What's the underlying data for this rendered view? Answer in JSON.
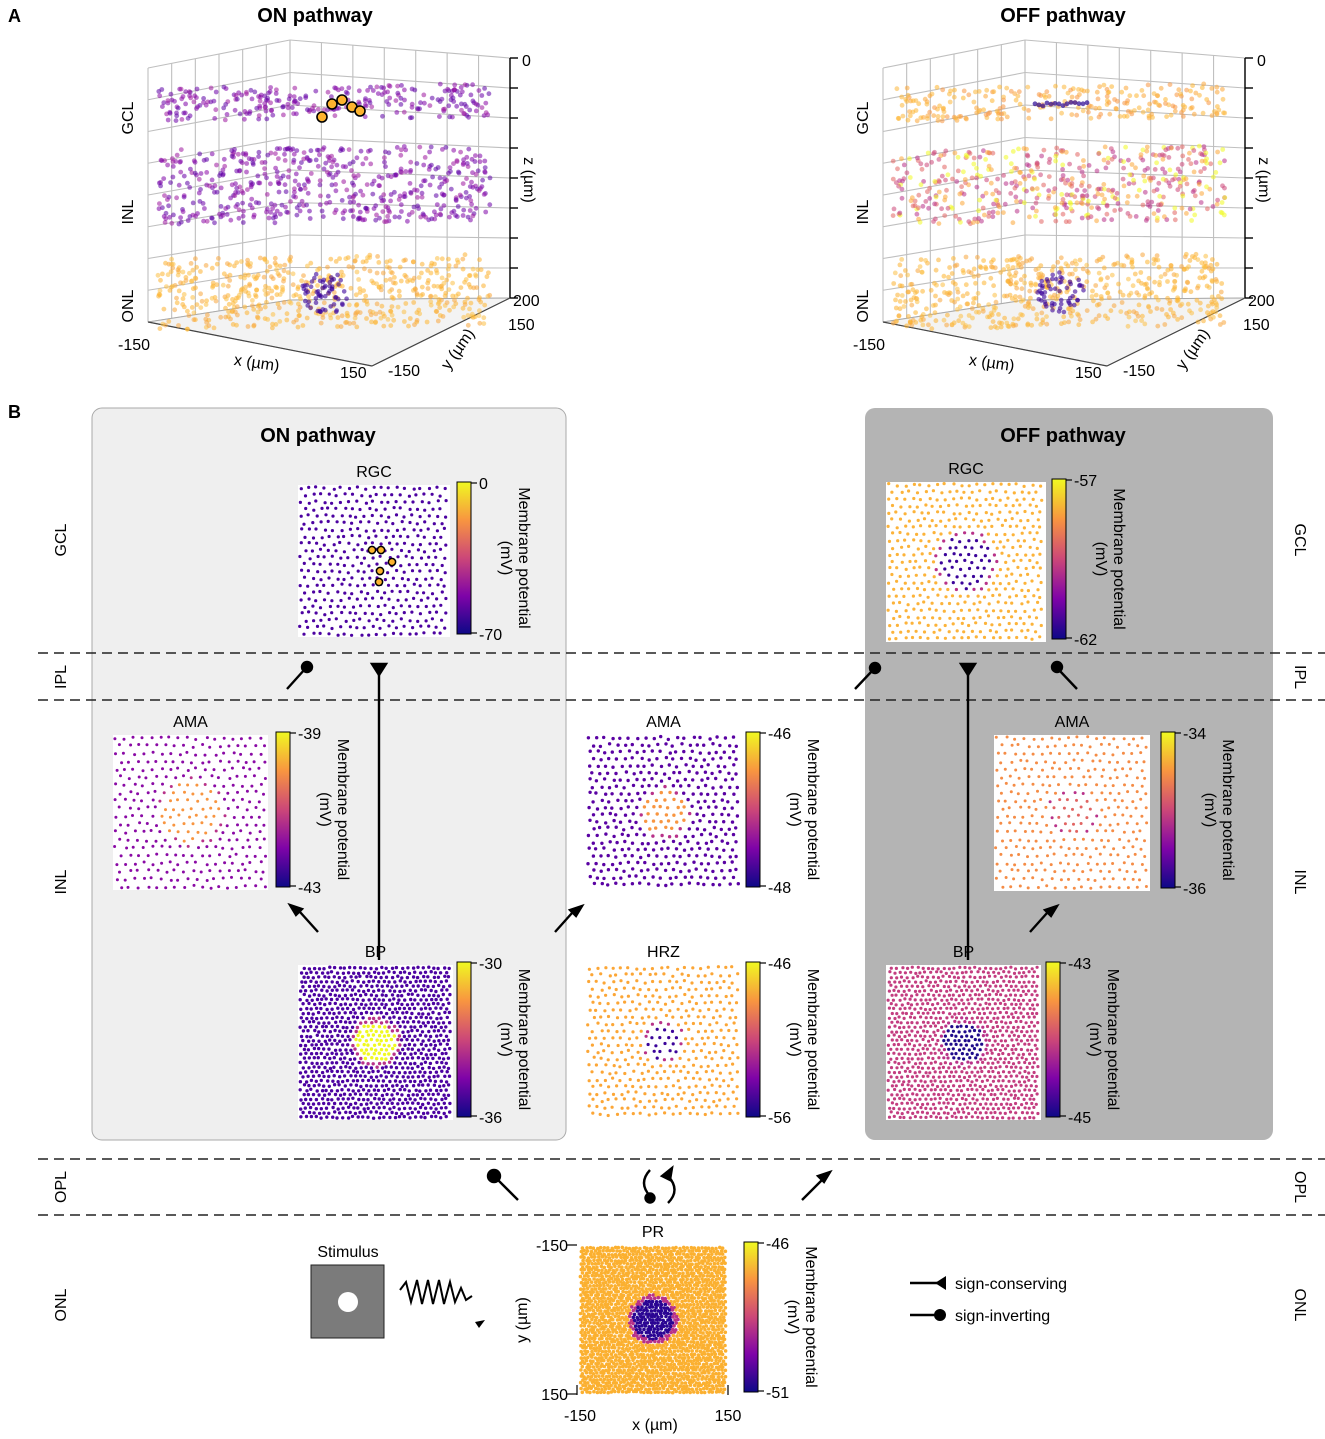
{
  "panel_a": {
    "label": "A",
    "on": {
      "title": "ON pathway",
      "layers": [
        "GCL",
        "INL",
        "ONL"
      ],
      "z_label": "z (µm)",
      "z_top": "0",
      "z_bottom": "200",
      "x_label": "x (µm)",
      "x_min": "-150",
      "x_max": "150",
      "y_label": "y (µm)",
      "y_min": "-150",
      "y_max": "150"
    },
    "off": {
      "title": "OFF pathway",
      "layers": [
        "GCL",
        "INL",
        "ONL"
      ],
      "z_label": "z (µm)",
      "z_top": "0",
      "z_bottom": "200",
      "x_label": "x (µm)",
      "x_min": "-150",
      "x_max": "150",
      "y_label": "y (µm)",
      "y_min": "-150",
      "y_max": "150"
    }
  },
  "panel_b": {
    "label": "B",
    "on_title": "ON pathway",
    "off_title": "OFF pathway",
    "layers_left": [
      "GCL",
      "IPL",
      "INL",
      "OPL",
      "ONL"
    ],
    "layers_right": [
      "GCL",
      "IPL",
      "INL",
      "OPL",
      "ONL"
    ],
    "colorbar_label": "Membrane potential",
    "colorbar_unit": "(mV)",
    "maps": {
      "on_rgc": {
        "title": "RGC",
        "max": "0",
        "min": "-70"
      },
      "off_rgc": {
        "title": "RGC",
        "max": "-57",
        "min": "-62"
      },
      "on_ama": {
        "title": "AMA",
        "max": "-39",
        "min": "-43"
      },
      "mid_ama": {
        "title": "AMA",
        "max": "-46",
        "min": "-48"
      },
      "off_ama": {
        "title": "AMA",
        "max": "-34",
        "min": "-36"
      },
      "on_bp": {
        "title": "BP",
        "max": "-30",
        "min": "-36"
      },
      "hrz": {
        "title": "HRZ",
        "max": "-46",
        "min": "-56"
      },
      "off_bp": {
        "title": "BP",
        "max": "-43",
        "min": "-45"
      },
      "pr": {
        "title": "PR",
        "max": "-46",
        "min": "-51"
      }
    },
    "pr_axes": {
      "y_label": "y (µm)",
      "y_top": "-150",
      "y_bottom": "150",
      "x_label": "x (µm)",
      "x_left": "-150",
      "x_right": "150"
    },
    "stimulus_label": "Stimulus",
    "legend": {
      "conserving": "sign-conserving",
      "inverting": "sign-inverting"
    }
  },
  "colors": {
    "on_box": "#efefef",
    "off_box": "#b4b4b4",
    "plasma_low": "#2a0593",
    "plasma_mid": "#cc4778",
    "plasma_high": "#f0f921",
    "orange": "#fbb030",
    "stimulus_gray": "#7b7b7b"
  }
}
